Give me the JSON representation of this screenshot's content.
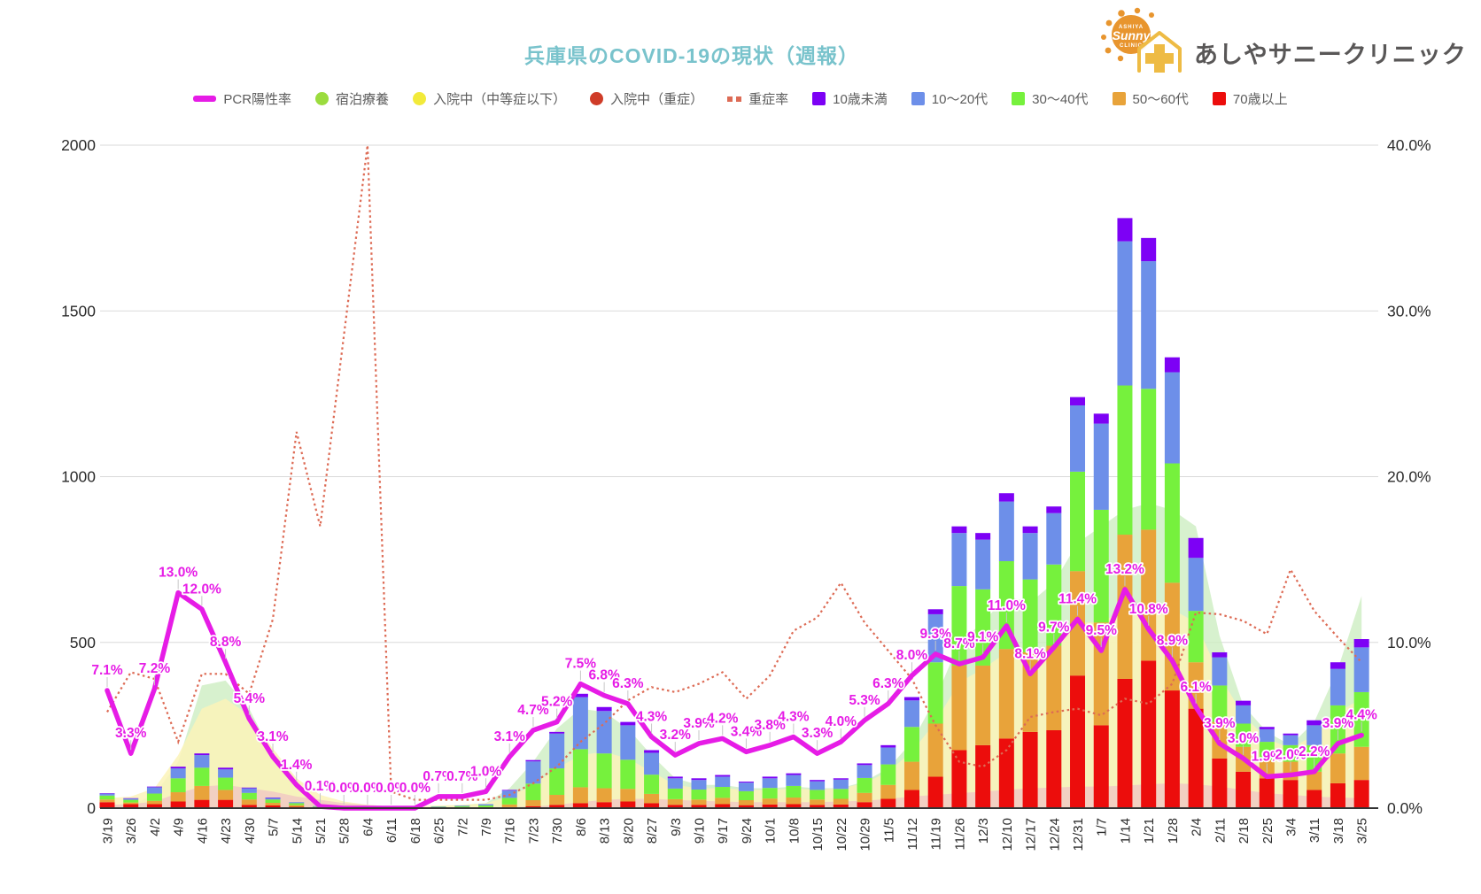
{
  "header": {
    "title": "兵庫県のCOVID-19の現状（週報）",
    "logo_text": "あしやサニークリニック",
    "logo_sun_word": "Sunny",
    "logo_sun_top": "ASHIYA",
    "logo_sun_bottom": "CLINIC",
    "title_color": "#79c3cc",
    "logo_orange": "#e8952e",
    "logo_gold": "#eebb44"
  },
  "legend": {
    "items": [
      {
        "label": "PCR陽性率",
        "swatch": "line",
        "color": "#e61ce6"
      },
      {
        "label": "宿泊療養",
        "swatch": "circle",
        "color": "#9bdc3e"
      },
      {
        "label": "入院中（中等症以下）",
        "swatch": "circle",
        "color": "#f2ea3a"
      },
      {
        "label": "入院中（重症）",
        "swatch": "circle",
        "color": "#cf3c28"
      },
      {
        "label": "重症率",
        "swatch": "dots",
        "color": "#dd6b55"
      },
      {
        "label": "10歳未満",
        "swatch": "square",
        "color": "#7d01f5"
      },
      {
        "label": "10〜20代",
        "swatch": "square",
        "color": "#6d8fe9"
      },
      {
        "label": "30〜40代",
        "swatch": "square",
        "color": "#76f13d"
      },
      {
        "label": "50〜60代",
        "swatch": "square",
        "color": "#e8a33a"
      },
      {
        "label": "70歳以上",
        "swatch": "square",
        "color": "#ec0d0c"
      }
    ]
  },
  "chart_data": {
    "type": "combo (stacked bar + line + area)",
    "title": "兵庫県のCOVID-19の現状（週報）",
    "categories": [
      "3/19",
      "3/26",
      "4/2",
      "4/9",
      "4/16",
      "4/23",
      "4/30",
      "5/7",
      "5/14",
      "5/21",
      "5/28",
      "6/4",
      "6/11",
      "6/18",
      "6/25",
      "7/2",
      "7/9",
      "7/16",
      "7/23",
      "7/30",
      "8/6",
      "8/13",
      "8/20",
      "8/27",
      "9/3",
      "9/10",
      "9/17",
      "9/24",
      "10/1",
      "10/8",
      "10/15",
      "10/22",
      "10/29",
      "11/5",
      "11/12",
      "11/19",
      "11/26",
      "12/3",
      "12/10",
      "12/17",
      "12/24",
      "12/31",
      "1/7",
      "1/14",
      "1/21",
      "1/28",
      "2/4",
      "2/11",
      "2/18",
      "2/25",
      "3/4",
      "3/11",
      "3/18",
      "3/25"
    ],
    "left_axis": {
      "ticks": [
        0,
        500,
        1000,
        1500,
        2000
      ],
      "max": 2000
    },
    "right_axis": {
      "ticks": [
        "0.0%",
        "10.0%",
        "20.0%",
        "30.0%",
        "40.0%"
      ],
      "max": 40
    },
    "grid": "horizontal gridlines on",
    "legend_position": "top",
    "series": [
      {
        "name": "PCR陽性率",
        "type": "line",
        "axis": "right",
        "color": "#e61ce6",
        "data_labels": true,
        "values": [
          7.1,
          3.3,
          7.2,
          13.0,
          12.0,
          8.8,
          5.4,
          3.1,
          1.4,
          0.1,
          0.0,
          0.0,
          0.0,
          0.0,
          0.7,
          0.7,
          1.0,
          3.1,
          4.7,
          5.2,
          7.5,
          6.8,
          6.3,
          4.3,
          3.2,
          3.9,
          4.2,
          3.4,
          3.8,
          4.3,
          3.3,
          4.0,
          5.3,
          6.3,
          8.0,
          9.3,
          8.7,
          9.1,
          11.0,
          8.1,
          9.7,
          11.4,
          9.5,
          13.2,
          10.8,
          8.9,
          6.1,
          3.9,
          3.0,
          1.9,
          2.0,
          2.2,
          3.9,
          4.4
        ]
      },
      {
        "name": "重症率",
        "type": "dotted-line",
        "axis": "right",
        "color": "#dd6b55",
        "values": [
          5.8,
          8.2,
          7.8,
          4.0,
          8.1,
          8.1,
          6.9,
          11.4,
          22.7,
          17.0,
          28.5,
          40.0,
          1.0,
          0.5,
          0.5,
          0.5,
          0.5,
          0.8,
          1.5,
          2.5,
          4.0,
          5.1,
          6.5,
          7.3,
          7.0,
          7.5,
          8.2,
          6.6,
          8.0,
          10.7,
          11.5,
          13.6,
          11.2,
          9.5,
          7.8,
          5.0,
          2.8,
          2.5,
          3.5,
          5.5,
          5.8,
          6.0,
          5.6,
          6.6,
          6.3,
          7.5,
          11.8,
          11.7,
          11.3,
          10.5,
          14.4,
          11.9,
          10.3,
          8.8
        ]
      },
      {
        "name": "宿泊療養",
        "type": "area",
        "axis": "left",
        "color": "#cdedc2",
        "opacity": 0.8,
        "values": [
          10,
          10,
          40,
          140,
          370,
          385,
          300,
          160,
          60,
          20,
          5,
          0,
          0,
          0,
          5,
          10,
          15,
          60,
          140,
          240,
          300,
          290,
          240,
          160,
          90,
          70,
          70,
          60,
          60,
          65,
          60,
          60,
          80,
          120,
          200,
          330,
          500,
          560,
          640,
          620,
          680,
          800,
          850,
          900,
          920,
          900,
          850,
          520,
          310,
          230,
          190,
          260,
          420,
          640
        ]
      },
      {
        "name": "入院中（中等症以下）",
        "type": "area",
        "axis": "left",
        "color": "#fbf3b8",
        "opacity": 0.85,
        "values": [
          30,
          35,
          60,
          160,
          300,
          330,
          280,
          180,
          90,
          40,
          20,
          10,
          5,
          5,
          8,
          10,
          15,
          35,
          70,
          120,
          160,
          170,
          150,
          110,
          70,
          60,
          60,
          55,
          55,
          60,
          55,
          60,
          75,
          110,
          170,
          260,
          380,
          420,
          470,
          460,
          490,
          560,
          560,
          600,
          620,
          600,
          560,
          400,
          280,
          210,
          180,
          220,
          290,
          330
        ]
      },
      {
        "name": "入院中（重症）",
        "type": "area",
        "axis": "left",
        "color": "#f1c7c3",
        "opacity": 0.8,
        "values": [
          10,
          12,
          20,
          45,
          65,
          70,
          60,
          50,
          35,
          25,
          15,
          10,
          5,
          3,
          2,
          2,
          2,
          3,
          5,
          10,
          18,
          25,
          28,
          28,
          25,
          22,
          20,
          18,
          18,
          18,
          18,
          20,
          22,
          28,
          35,
          40,
          45,
          50,
          55,
          60,
          62,
          65,
          65,
          68,
          72,
          75,
          72,
          65,
          55,
          45,
          40,
          35,
          32,
          30
        ]
      },
      {
        "name": "70歳以上",
        "type": "bar",
        "stack_order": 1,
        "axis": "left",
        "color": "#ec0d0c",
        "values": [
          18,
          12,
          12,
          20,
          25,
          25,
          10,
          8,
          4,
          2,
          1,
          0,
          0,
          0,
          1,
          1,
          1,
          3,
          6,
          10,
          15,
          18,
          20,
          15,
          10,
          10,
          12,
          9,
          11,
          12,
          10,
          11,
          18,
          28,
          55,
          95,
          175,
          190,
          210,
          230,
          235,
          400,
          250,
          390,
          445,
          355,
          300,
          150,
          110,
          90,
          85,
          55,
          75,
          85
        ]
      },
      {
        "name": "50〜60代",
        "type": "bar",
        "stack_order": 2,
        "axis": "left",
        "color": "#e8a33a",
        "values": [
          8,
          5,
          10,
          28,
          42,
          30,
          16,
          8,
          5,
          1,
          0,
          0,
          0,
          1,
          1,
          2,
          2,
          8,
          18,
          30,
          48,
          42,
          38,
          28,
          17,
          16,
          19,
          15,
          18,
          20,
          16,
          17,
          28,
          42,
          85,
          160,
          255,
          240,
          270,
          240,
          255,
          315,
          310,
          435,
          395,
          325,
          140,
          110,
          75,
          55,
          55,
          55,
          90,
          100
        ]
      },
      {
        "name": "30〜40代",
        "type": "bar",
        "stack_order": 3,
        "axis": "left",
        "color": "#76f13d",
        "values": [
          12,
          8,
          22,
          42,
          55,
          37,
          20,
          10,
          6,
          2,
          1,
          1,
          1,
          1,
          2,
          3,
          5,
          20,
          50,
          80,
          115,
          105,
          88,
          58,
          32,
          30,
          33,
          27,
          32,
          35,
          29,
          30,
          45,
          62,
          105,
          185,
          240,
          230,
          265,
          220,
          245,
          300,
          340,
          450,
          425,
          360,
          155,
          110,
          70,
          55,
          50,
          80,
          145,
          165
        ]
      },
      {
        "name": "10〜20代",
        "type": "bar",
        "stack_order": 4,
        "axis": "left",
        "color": "#6d8fe9",
        "values": [
          6,
          4,
          19,
          30,
          38,
          25,
          14,
          5,
          3,
          1,
          0,
          0,
          0,
          0,
          1,
          2,
          4,
          22,
          67,
          105,
          157,
          128,
          104,
          66,
          31,
          29,
          31,
          26,
          29,
          33,
          26,
          28,
          39,
          51,
          80,
          145,
          160,
          150,
          180,
          140,
          155,
          200,
          260,
          435,
          385,
          275,
          160,
          85,
          55,
          38,
          30,
          60,
          110,
          135
        ]
      },
      {
        "name": "10歳未満",
        "type": "bar",
        "stack_order": 5,
        "axis": "left",
        "color": "#7d01f5",
        "values": [
          1,
          1,
          2,
          5,
          5,
          5,
          2,
          1,
          0,
          0,
          0,
          0,
          0,
          0,
          0,
          0,
          0,
          2,
          4,
          5,
          10,
          12,
          10,
          8,
          5,
          5,
          5,
          3,
          5,
          5,
          4,
          4,
          5,
          7,
          10,
          15,
          20,
          20,
          25,
          20,
          20,
          25,
          30,
          70,
          70,
          45,
          60,
          15,
          14,
          7,
          5,
          15,
          20,
          25
        ]
      }
    ],
    "annotation_style": {
      "color": "#e61ce6",
      "halo": "#ffffff",
      "format": "0.0%"
    }
  }
}
